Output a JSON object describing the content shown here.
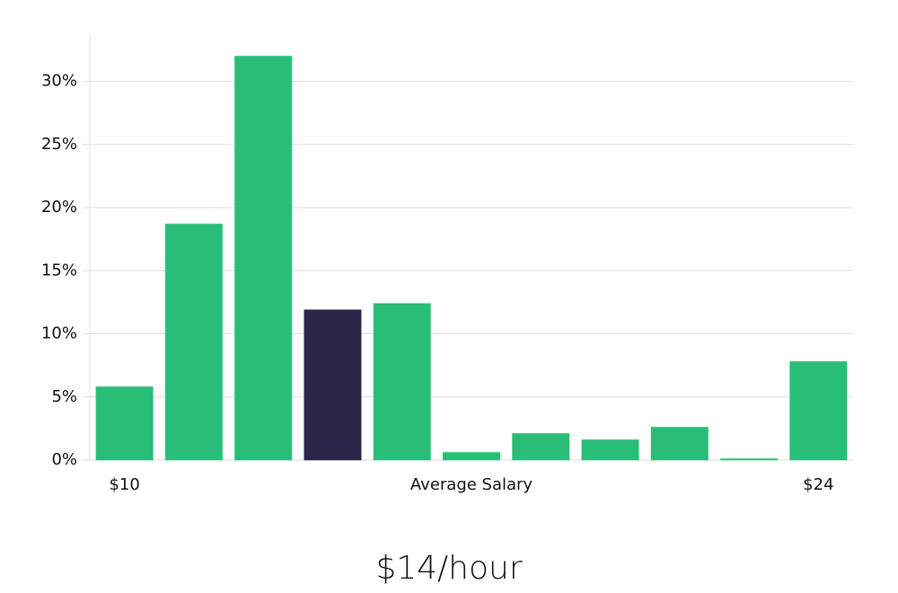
{
  "chart_data": {
    "type": "bar",
    "categories": [
      "$10",
      null,
      null,
      null,
      null,
      null,
      null,
      null,
      null,
      null,
      "$24"
    ],
    "values": [
      5.8,
      18.7,
      32.0,
      11.9,
      12.4,
      0.6,
      2.1,
      1.6,
      2.6,
      0.1,
      7.8
    ],
    "colors": [
      "#2abd77",
      "#2abd77",
      "#2abd77",
      "#2a2649",
      "#2abd77",
      "#2abd77",
      "#2abd77",
      "#2abd77",
      "#2abd77",
      "#2abd77",
      "#2abd77"
    ],
    "xlabel": "Average Salary",
    "ylim": [
      0,
      33.6
    ],
    "yticks": [
      {
        "value": 0,
        "label": "0%"
      },
      {
        "value": 5,
        "label": "5%"
      },
      {
        "value": 10,
        "label": "10%"
      },
      {
        "value": 15,
        "label": "15%"
      },
      {
        "value": 20,
        "label": "20%"
      },
      {
        "value": 25,
        "label": "25%"
      },
      {
        "value": 30,
        "label": "30%"
      }
    ],
    "grid": true,
    "annotation": "$14/hour"
  }
}
